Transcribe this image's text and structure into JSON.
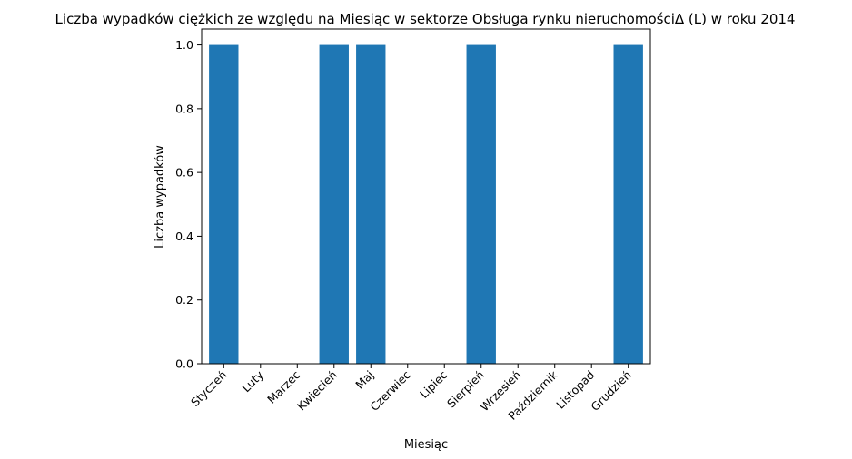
{
  "chart_data": {
    "type": "bar",
    "title": "Liczba wypadków ciężkich ze względu na Miesiąc w sektorze  Obsługa rynku nieruchomościΔ  (L) w roku 2014",
    "xlabel": "Miesiąc",
    "ylabel": "Liczba wypadków",
    "categories": [
      "Styczeń",
      "Luty",
      "Marzec",
      "Kwiecień",
      "Maj",
      "Czerwiec",
      "Lipiec",
      "Sierpień",
      "Wrzesień",
      "Październik",
      "Listopad",
      "Grudzień"
    ],
    "values": [
      1,
      0,
      0,
      1,
      1,
      0,
      0,
      1,
      0,
      0,
      0,
      1
    ],
    "ylim": [
      0,
      1.05
    ],
    "yticks": [
      "0.0",
      "0.2",
      "0.4",
      "0.6",
      "0.8",
      "1.0"
    ],
    "grid": false,
    "bar_color": "#1f77b4"
  }
}
